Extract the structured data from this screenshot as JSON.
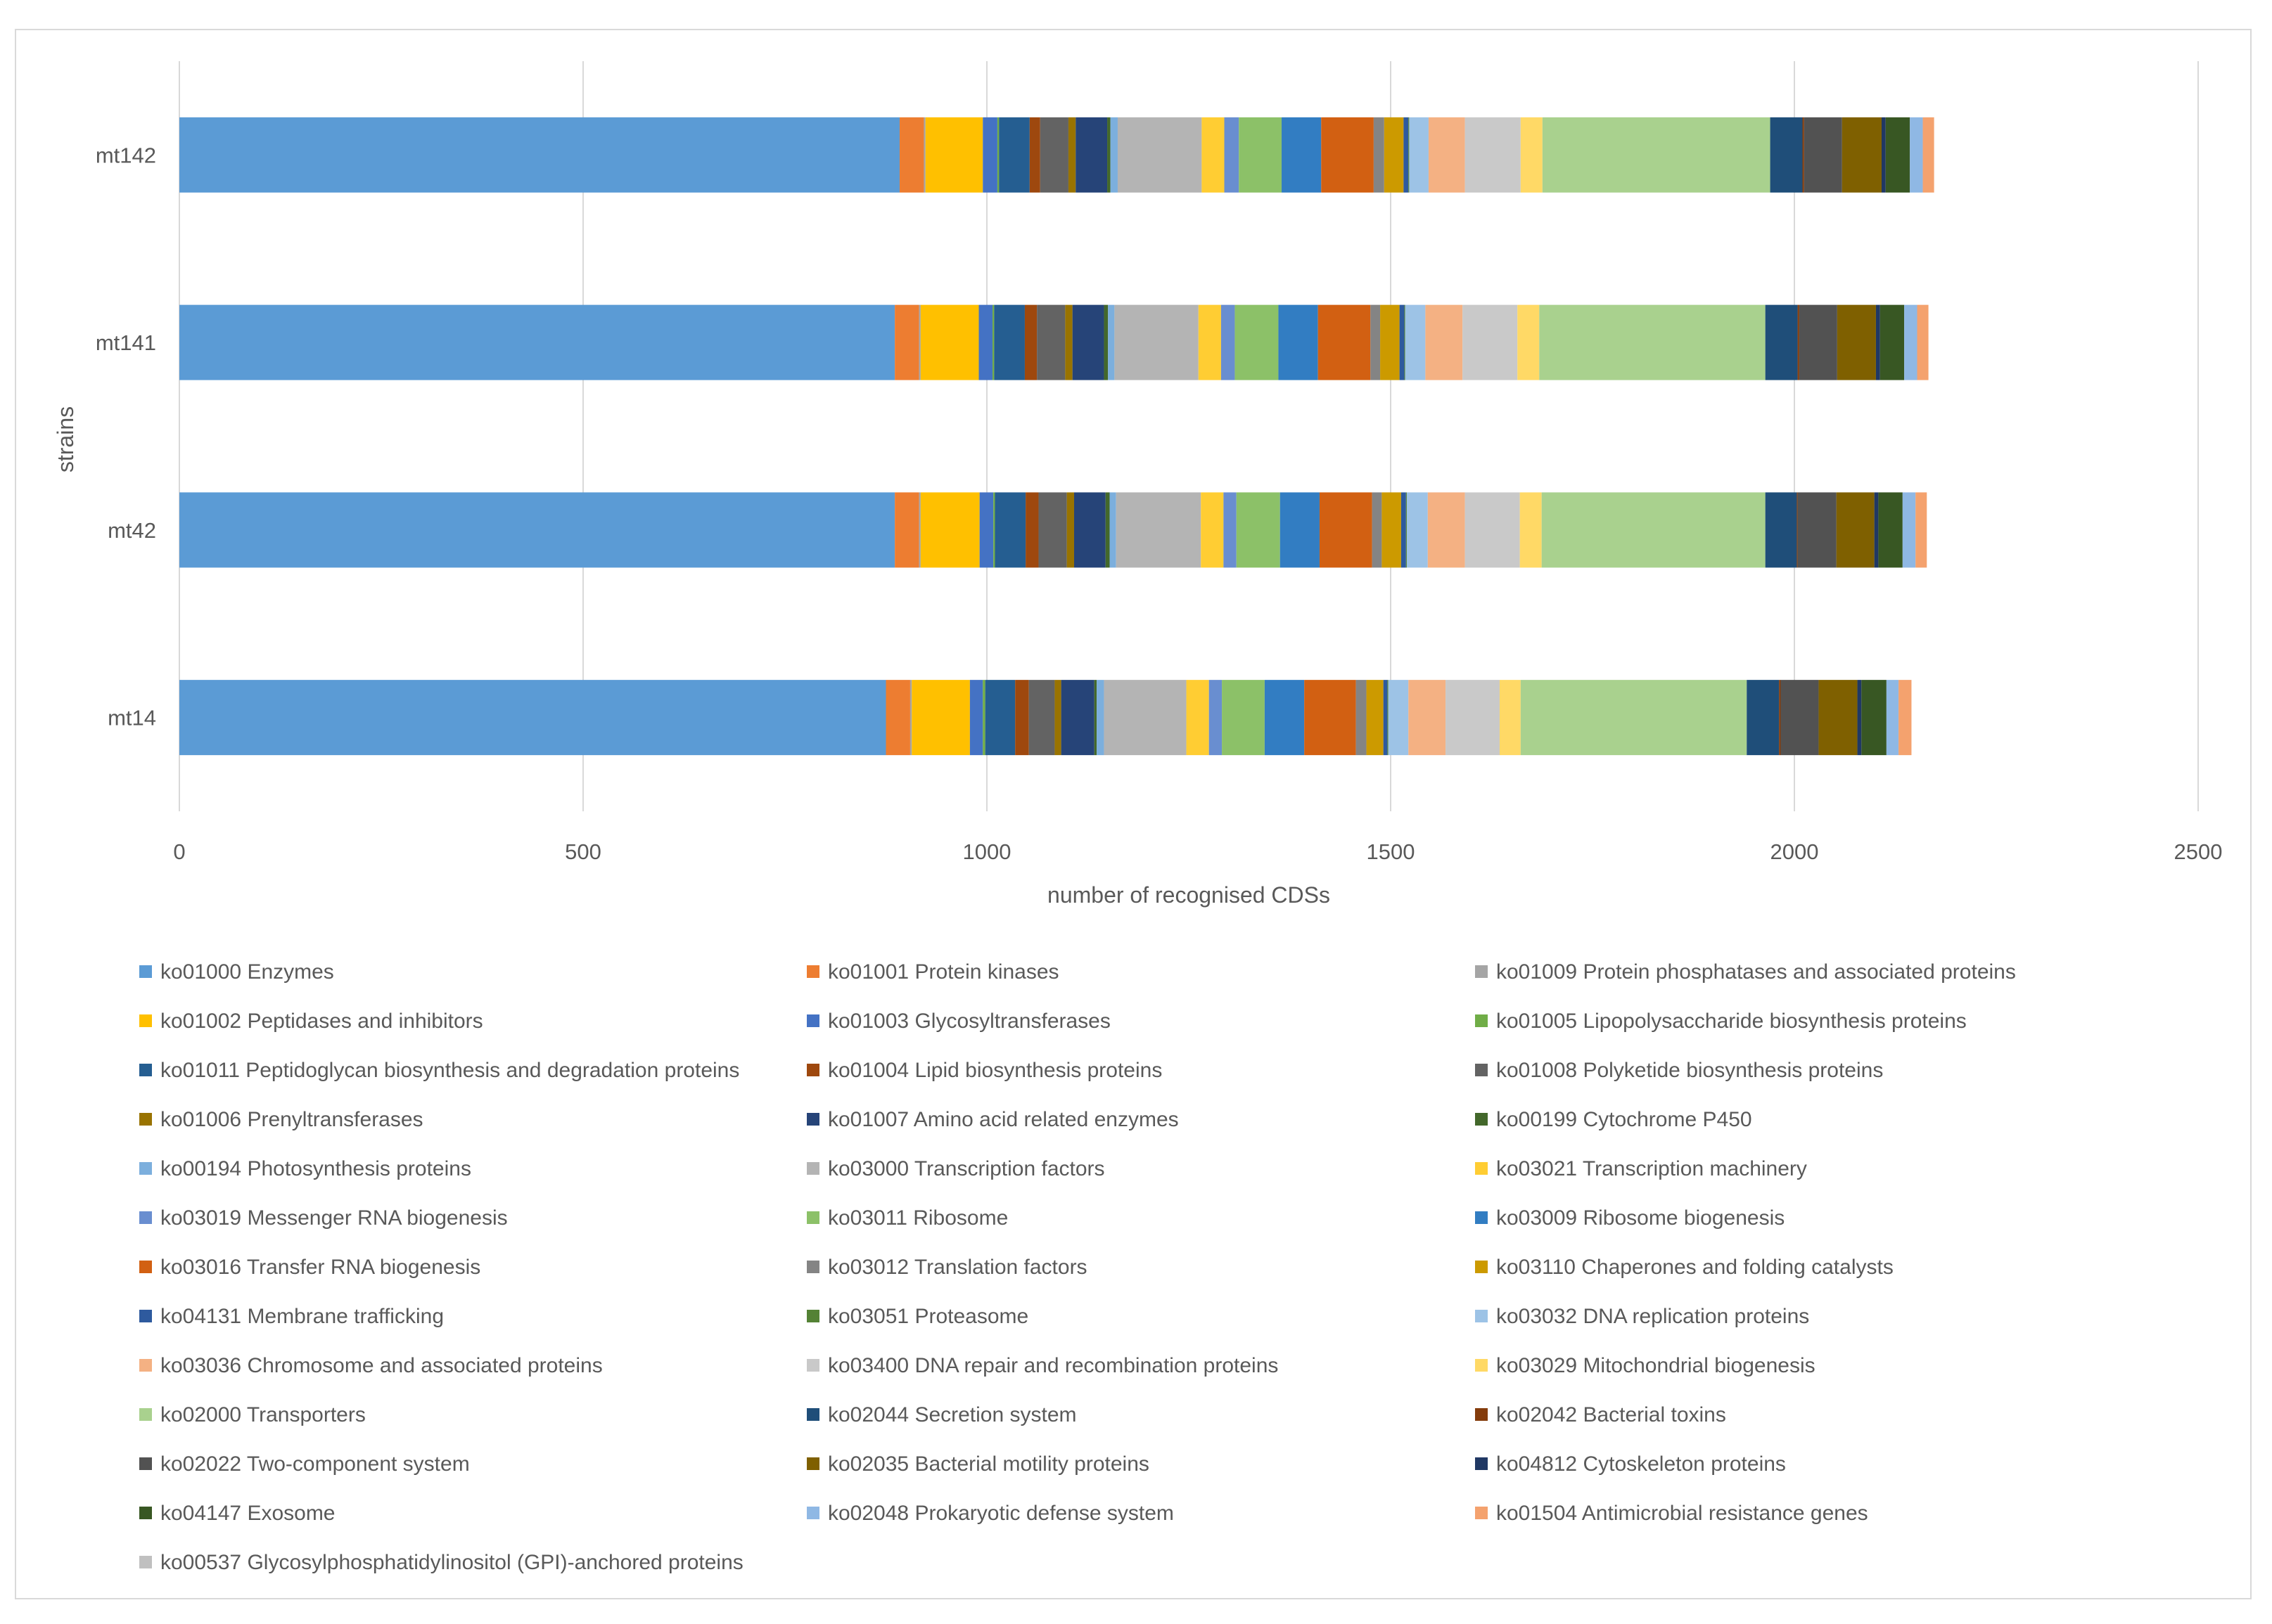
{
  "chart_data": {
    "type": "bar",
    "orientation": "horizontal",
    "stacked": true,
    "title": "",
    "xlabel": "number of recognised CDSs",
    "ylabel": "strains",
    "xlim": [
      0,
      2500
    ],
    "xticks": [
      "0",
      "500",
      "1000",
      "1500",
      "2000",
      "2500"
    ],
    "grid": true,
    "legend_position": "bottom",
    "categories": [
      "mt142",
      "mt141",
      "mt42",
      "mt14"
    ],
    "series": [
      {
        "name": "ko01000 Enzymes",
        "color": "#5B9BD5",
        "values": [
          892,
          886,
          886,
          875
        ]
      },
      {
        "name": "ko01001 Protein kinases",
        "color": "#ED7D31",
        "values": [
          30,
          30,
          30,
          30
        ]
      },
      {
        "name": "ko01009 Protein phosphatases and associated proteins",
        "color": "#A5A5A5",
        "values": [
          2,
          2,
          2,
          2
        ]
      },
      {
        "name": "ko01002 Peptidases and inhibitors",
        "color": "#FFC000",
        "values": [
          71,
          72,
          73,
          72
        ]
      },
      {
        "name": "ko01003 Glycosyltransferases",
        "color": "#4472C4",
        "values": [
          18,
          17,
          17,
          16
        ]
      },
      {
        "name": "ko01005 Lipopolysaccharide biosynthesis proteins",
        "color": "#70AD47",
        "values": [
          2,
          2,
          2,
          3
        ]
      },
      {
        "name": "ko01011 Peptidoglycan biosynthesis and degradation proteins",
        "color": "#255E91",
        "values": [
          38,
          38,
          38,
          37
        ]
      },
      {
        "name": "ko01004 Lipid biosynthesis proteins",
        "color": "#9E480E",
        "values": [
          13,
          15,
          16,
          17
        ]
      },
      {
        "name": "ko01008 Polyketide biosynthesis proteins",
        "color": "#636363",
        "values": [
          35,
          35,
          35,
          32
        ]
      },
      {
        "name": "ko01006 Prenyltransferases",
        "color": "#997300",
        "values": [
          9,
          9,
          9,
          8
        ]
      },
      {
        "name": "ko01007 Amino acid related enzymes",
        "color": "#264478",
        "values": [
          39,
          39,
          39,
          41
        ]
      },
      {
        "name": "ko00199 Cytochrome P450",
        "color": "#43682B",
        "values": [
          4,
          5,
          5,
          3
        ]
      },
      {
        "name": "ko00194 Photosynthesis proteins",
        "color": "#7CAFDD",
        "values": [
          9,
          8,
          8,
          9
        ]
      },
      {
        "name": "ko03000 Transcription factors",
        "color": "#B4B4B4",
        "values": [
          104,
          104,
          105,
          102
        ]
      },
      {
        "name": "ko03021 Transcription machinery",
        "color": "#FFCD33",
        "values": [
          28,
          28,
          28,
          28
        ]
      },
      {
        "name": "ko03019 Messenger RNA biogenesis",
        "color": "#698ED0",
        "values": [
          18,
          17,
          16,
          16
        ]
      },
      {
        "name": "ko03011 Ribosome",
        "color": "#8CC168",
        "values": [
          53,
          54,
          54,
          53
        ]
      },
      {
        "name": "ko03009 Ribosome biogenesis",
        "color": "#327DC2",
        "values": [
          49,
          49,
          49,
          49
        ]
      },
      {
        "name": "ko03016 Transfer RNA biogenesis",
        "color": "#D26012",
        "values": [
          65,
          65,
          65,
          64
        ]
      },
      {
        "name": "ko03012 Translation factors",
        "color": "#848484",
        "values": [
          13,
          12,
          12,
          13
        ]
      },
      {
        "name": "ko03110 Chaperones and folding catalysts",
        "color": "#CC9A00",
        "values": [
          24,
          24,
          24,
          21
        ]
      },
      {
        "name": "ko04131 Membrane trafficking",
        "color": "#2E5A9E",
        "values": [
          6,
          6,
          6,
          5
        ]
      },
      {
        "name": "ko03051 Proteasome",
        "color": "#548235",
        "values": [
          1,
          1,
          1,
          1
        ]
      },
      {
        "name": "ko03032 DNA replication proteins",
        "color": "#9DC3E6",
        "values": [
          24,
          25,
          26,
          25
        ]
      },
      {
        "name": "ko03036 Chromosome and associated proteins",
        "color": "#F4B183",
        "values": [
          45,
          46,
          46,
          46
        ]
      },
      {
        "name": "ko03400 DNA repair and recombination proteins",
        "color": "#C9C9C9",
        "values": [
          69,
          68,
          68,
          67
        ]
      },
      {
        "name": "ko03029 Mitochondrial biogenesis",
        "color": "#FFD966",
        "values": [
          27,
          27,
          27,
          26
        ]
      },
      {
        "name": "ko02000 Transporters",
        "color": "#A9D18E",
        "values": [
          282,
          280,
          277,
          280
        ]
      },
      {
        "name": "ko02044 Secretion system",
        "color": "#1F4E79",
        "values": [
          40,
          40,
          39,
          40
        ]
      },
      {
        "name": "ko02042 Bacterial toxins",
        "color": "#843C0C",
        "values": [
          2,
          2,
          1,
          2
        ]
      },
      {
        "name": "ko02022 Two-component system",
        "color": "#525252",
        "values": [
          47,
          47,
          48,
          47
        ]
      },
      {
        "name": "ko02035 Bacterial motility proteins",
        "color": "#7F6000",
        "values": [
          49,
          48,
          47,
          48
        ]
      },
      {
        "name": "ko04812 Cytoskeleton proteins",
        "color": "#203864",
        "values": [
          5,
          5,
          5,
          5
        ]
      },
      {
        "name": "ko04147 Exosome",
        "color": "#385723",
        "values": [
          30,
          30,
          30,
          31
        ]
      },
      {
        "name": "ko02048 Prokaryotic defense system",
        "color": "#8FB8E4",
        "values": [
          16,
          16,
          16,
          15
        ]
      },
      {
        "name": "ko01504 Antimicrobial resistance genes",
        "color": "#F4A26E",
        "values": [
          14,
          14,
          14,
          16
        ]
      },
      {
        "name": "ko00537 Glycosylphosphatidylinositol (GPI)-anchored proteins",
        "color": "#C0C0C0",
        "values": [
          0,
          0,
          0,
          0
        ]
      }
    ]
  }
}
